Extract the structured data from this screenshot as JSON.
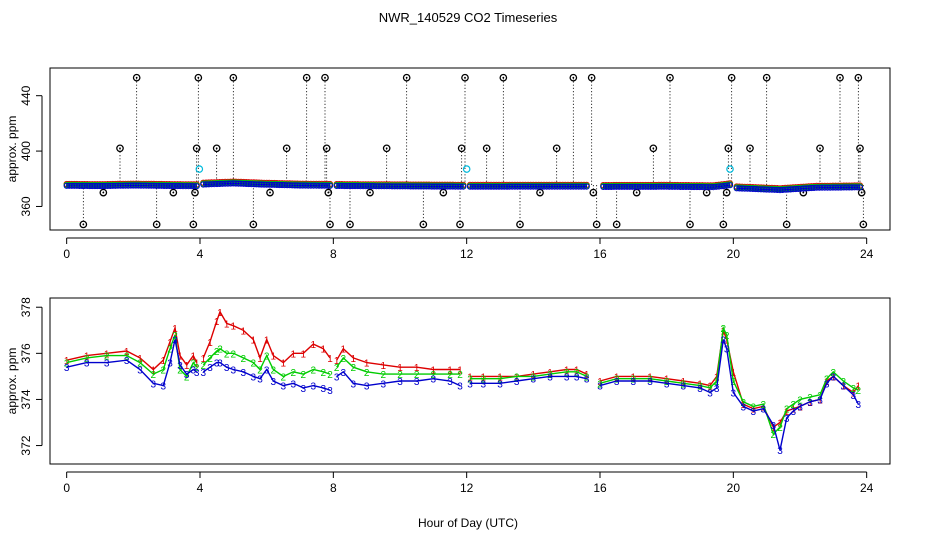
{
  "title": "NWR_140529  CO2 Timeseries",
  "xlabel": "Hour of Day (UTC)",
  "colors": {
    "one": "#dd0000",
    "two": "#00cc00",
    "three": "#0000cc",
    "outlier": "#000000",
    "flag": "#00bbdd"
  },
  "chart_data": [
    {
      "type": "scatter",
      "name": "overview",
      "ylabel": "approx. ppm",
      "xlim": [
        -0.5,
        24.7
      ],
      "ylim": [
        343,
        460
      ],
      "xticks": [
        0,
        4,
        8,
        12,
        16,
        20,
        24
      ],
      "xtick_labels": [
        "0",
        "4",
        "8",
        "12",
        "16",
        "20",
        "24"
      ],
      "yticks": [
        360,
        400,
        440
      ],
      "ytick_labels": [
        "360",
        "400",
        "440"
      ],
      "baseline_segments": [
        {
          "x": [
            0.0,
            1.0,
            2.0,
            3.0,
            3.9
          ],
          "y": [
            375.6,
            375.4,
            375.8,
            375.5,
            375.3
          ]
        },
        {
          "x": [
            4.1,
            5.0,
            6.0,
            7.0,
            7.9
          ],
          "y": [
            376.5,
            377.3,
            376.4,
            375.8,
            375.6
          ]
        },
        {
          "x": [
            8.1,
            10.0,
            11.9
          ],
          "y": [
            375.5,
            375.2,
            375.0
          ]
        },
        {
          "x": [
            12.1,
            14.0,
            15.6
          ],
          "y": [
            374.9,
            375.0,
            375.0
          ]
        },
        {
          "x": [
            16.1,
            18.0,
            19.4,
            19.9
          ],
          "y": [
            374.8,
            374.9,
            374.6,
            376.0
          ]
        },
        {
          "x": [
            20.1,
            21.4,
            22.5,
            23.8
          ],
          "y": [
            373.8,
            372.5,
            374.2,
            374.5
          ]
        }
      ],
      "outliers": [
        {
          "x": 0.5,
          "y": 347
        },
        {
          "x": 1.1,
          "y": 370
        },
        {
          "x": 1.6,
          "y": 402
        },
        {
          "x": 2.1,
          "y": 453
        },
        {
          "x": 2.7,
          "y": 347
        },
        {
          "x": 3.2,
          "y": 370
        },
        {
          "x": 3.8,
          "y": 347
        },
        {
          "x": 3.85,
          "y": 370
        },
        {
          "x": 3.9,
          "y": 402
        },
        {
          "x": 3.95,
          "y": 453
        },
        {
          "x": 4.5,
          "y": 402
        },
        {
          "x": 5.0,
          "y": 453
        },
        {
          "x": 5.6,
          "y": 347
        },
        {
          "x": 6.1,
          "y": 370
        },
        {
          "x": 6.6,
          "y": 402
        },
        {
          "x": 7.2,
          "y": 453
        },
        {
          "x": 7.75,
          "y": 453
        },
        {
          "x": 7.8,
          "y": 402
        },
        {
          "x": 7.85,
          "y": 370
        },
        {
          "x": 7.9,
          "y": 347
        },
        {
          "x": 8.5,
          "y": 347
        },
        {
          "x": 9.1,
          "y": 370
        },
        {
          "x": 9.6,
          "y": 402
        },
        {
          "x": 10.2,
          "y": 453
        },
        {
          "x": 10.7,
          "y": 347
        },
        {
          "x": 11.3,
          "y": 370
        },
        {
          "x": 11.8,
          "y": 347
        },
        {
          "x": 11.85,
          "y": 402
        },
        {
          "x": 11.95,
          "y": 453
        },
        {
          "x": 12.6,
          "y": 402
        },
        {
          "x": 13.1,
          "y": 453
        },
        {
          "x": 13.6,
          "y": 347
        },
        {
          "x": 14.2,
          "y": 370
        },
        {
          "x": 14.7,
          "y": 402
        },
        {
          "x": 15.2,
          "y": 453
        },
        {
          "x": 15.75,
          "y": 453
        },
        {
          "x": 15.8,
          "y": 370
        },
        {
          "x": 15.9,
          "y": 347
        },
        {
          "x": 16.5,
          "y": 347
        },
        {
          "x": 17.1,
          "y": 370
        },
        {
          "x": 17.6,
          "y": 402
        },
        {
          "x": 18.1,
          "y": 453
        },
        {
          "x": 18.7,
          "y": 347
        },
        {
          "x": 19.2,
          "y": 370
        },
        {
          "x": 19.7,
          "y": 347
        },
        {
          "x": 19.8,
          "y": 370
        },
        {
          "x": 19.85,
          "y": 402
        },
        {
          "x": 19.95,
          "y": 453
        },
        {
          "x": 20.5,
          "y": 402
        },
        {
          "x": 21.0,
          "y": 453
        },
        {
          "x": 21.6,
          "y": 347
        },
        {
          "x": 22.1,
          "y": 370
        },
        {
          "x": 22.6,
          "y": 402
        },
        {
          "x": 23.2,
          "y": 453
        },
        {
          "x": 23.75,
          "y": 453
        },
        {
          "x": 23.8,
          "y": 402
        },
        {
          "x": 23.85,
          "y": 370
        },
        {
          "x": 23.9,
          "y": 347
        }
      ],
      "flags": [
        {
          "x": 3.98,
          "y": 387
        },
        {
          "x": 12.0,
          "y": 387
        },
        {
          "x": 19.9,
          "y": 387
        }
      ]
    },
    {
      "type": "line",
      "name": "detail",
      "ylabel": "approx. ppm",
      "xlim": [
        -0.5,
        24.7
      ],
      "ylim": [
        371.2,
        378.4
      ],
      "xticks": [
        0,
        4,
        8,
        12,
        16,
        20,
        24
      ],
      "xtick_labels": [
        "0",
        "4",
        "8",
        "12",
        "16",
        "20",
        "24"
      ],
      "yticks": [
        372,
        374,
        376,
        378
      ],
      "ytick_labels": [
        "372",
        "374",
        "376",
        "378"
      ],
      "series": [
        {
          "name": "1",
          "marker": "1",
          "color_key": "one",
          "segments": [
            {
              "x": [
                0.0,
                0.6,
                1.2,
                1.8,
                2.2,
                2.6,
                2.9,
                3.1,
                3.25,
                3.4,
                3.6,
                3.8,
                3.9
              ],
              "y": [
                375.7,
                375.9,
                376.0,
                376.1,
                375.8,
                375.3,
                375.7,
                376.5,
                377.1,
                375.9,
                375.5,
                375.9,
                375.6
              ]
            },
            {
              "x": [
                4.1,
                4.3,
                4.5,
                4.6,
                4.8,
                5.0,
                5.3,
                5.6,
                5.8,
                6.0,
                6.2,
                6.5,
                6.8,
                7.1,
                7.4,
                7.7,
                7.9
              ],
              "y": [
                375.8,
                376.5,
                377.4,
                377.8,
                377.3,
                377.2,
                377.0,
                376.6,
                375.8,
                376.6,
                375.9,
                375.6,
                376.0,
                376.0,
                376.4,
                376.2,
                375.8
              ]
            },
            {
              "x": [
                8.1,
                8.3,
                8.6,
                9.0,
                9.5,
                10.0,
                10.5,
                11.0,
                11.5,
                11.8
              ],
              "y": [
                375.7,
                376.2,
                375.8,
                375.6,
                375.5,
                375.4,
                375.4,
                375.3,
                375.3,
                375.3
              ]
            },
            {
              "x": [
                12.1,
                12.5,
                13.0,
                13.5,
                14.0,
                14.5,
                15.0,
                15.3,
                15.6
              ],
              "y": [
                375.0,
                375.0,
                375.0,
                375.0,
                375.1,
                375.2,
                375.3,
                375.3,
                375.1
              ]
            },
            {
              "x": [
                16.0,
                16.5,
                17.0,
                17.5,
                18.0,
                18.5,
                19.0,
                19.3,
                19.5,
                19.7,
                19.8,
                20.0,
                20.3,
                20.6,
                20.9,
                21.2,
                21.4,
                21.6,
                21.8,
                22.0,
                22.3,
                22.6,
                22.8,
                23.0,
                23.3,
                23.6,
                23.75
              ],
              "y": [
                374.8,
                375.0,
                375.0,
                375.0,
                374.9,
                374.8,
                374.7,
                374.6,
                375.0,
                377.0,
                376.6,
                375.2,
                373.8,
                373.6,
                373.7,
                372.8,
                373.0,
                373.5,
                373.6,
                373.7,
                373.9,
                374.0,
                374.8,
                375.0,
                374.6,
                374.3,
                374.6
              ]
            }
          ]
        },
        {
          "name": "2",
          "marker": "2",
          "color_key": "two",
          "segments": [
            {
              "x": [
                0.0,
                0.6,
                1.2,
                1.8,
                2.2,
                2.6,
                2.9,
                3.1,
                3.25,
                3.4,
                3.6,
                3.8,
                3.9
              ],
              "y": [
                375.6,
                375.8,
                375.9,
                375.9,
                375.6,
                375.1,
                375.3,
                376.2,
                376.8,
                375.3,
                375.0,
                375.6,
                375.4
              ]
            },
            {
              "x": [
                4.1,
                4.3,
                4.5,
                4.6,
                4.8,
                5.0,
                5.3,
                5.6,
                5.8,
                6.0,
                6.2,
                6.5,
                6.8,
                7.1,
                7.4,
                7.7,
                7.9
              ],
              "y": [
                375.5,
                375.8,
                376.1,
                376.2,
                376.0,
                376.0,
                375.8,
                375.6,
                375.3,
                375.9,
                375.3,
                375.0,
                375.2,
                375.1,
                375.3,
                375.2,
                375.1
              ]
            },
            {
              "x": [
                8.1,
                8.3,
                8.6,
                9.0,
                9.5,
                10.0,
                10.5,
                11.0,
                11.5,
                11.8
              ],
              "y": [
                375.4,
                375.8,
                375.4,
                375.2,
                375.1,
                375.1,
                375.1,
                375.1,
                375.1,
                375.1
              ]
            },
            {
              "x": [
                12.1,
                12.5,
                13.0,
                13.5,
                14.0,
                14.5,
                15.0,
                15.3,
                15.6
              ],
              "y": [
                374.9,
                374.9,
                374.9,
                375.0,
                375.0,
                375.1,
                375.2,
                375.2,
                375.0
              ]
            },
            {
              "x": [
                16.0,
                16.5,
                17.0,
                17.5,
                18.0,
                18.5,
                19.0,
                19.3,
                19.5,
                19.7,
                19.8,
                20.0,
                20.3,
                20.6,
                20.9,
                21.2,
                21.4,
                21.6,
                21.8,
                22.0,
                22.3,
                22.6,
                22.8,
                23.0,
                23.3,
                23.6,
                23.75
              ],
              "y": [
                374.7,
                374.9,
                374.9,
                374.9,
                374.8,
                374.7,
                374.6,
                374.5,
                374.8,
                377.1,
                376.8,
                374.8,
                373.9,
                373.7,
                373.8,
                372.5,
                372.8,
                373.6,
                373.8,
                374.0,
                374.1,
                374.2,
                374.9,
                375.2,
                374.8,
                374.5,
                374.4
              ]
            }
          ]
        },
        {
          "name": "3",
          "marker": "3",
          "color_key": "three",
          "segments": [
            {
              "x": [
                0.0,
                0.6,
                1.2,
                1.8,
                2.2,
                2.6,
                2.9,
                3.1,
                3.25,
                3.4,
                3.6,
                3.8,
                3.9
              ],
              "y": [
                375.4,
                375.6,
                375.6,
                375.7,
                375.3,
                374.7,
                374.6,
                375.6,
                376.6,
                375.5,
                375.1,
                375.3,
                375.2
              ]
            },
            {
              "x": [
                4.1,
                4.3,
                4.5,
                4.6,
                4.8,
                5.0,
                5.3,
                5.6,
                5.8,
                6.0,
                6.2,
                6.5,
                6.8,
                7.1,
                7.4,
                7.7,
                7.9
              ],
              "y": [
                375.2,
                375.4,
                375.6,
                375.6,
                375.4,
                375.3,
                375.2,
                375.0,
                374.9,
                375.3,
                374.8,
                374.6,
                374.7,
                374.5,
                374.6,
                374.5,
                374.4
              ]
            },
            {
              "x": [
                8.1,
                8.3,
                8.6,
                9.0,
                9.5,
                10.0,
                10.5,
                11.0,
                11.5,
                11.8
              ],
              "y": [
                375.0,
                375.2,
                374.7,
                374.6,
                374.7,
                374.8,
                374.8,
                374.9,
                374.8,
                374.6
              ]
            },
            {
              "x": [
                12.1,
                12.5,
                13.0,
                13.5,
                14.0,
                14.5,
                15.0,
                15.3,
                15.6
              ],
              "y": [
                374.7,
                374.7,
                374.7,
                374.8,
                374.9,
                375.0,
                375.0,
                375.0,
                374.9
              ]
            },
            {
              "x": [
                16.0,
                16.5,
                17.0,
                17.5,
                18.0,
                18.5,
                19.0,
                19.3,
                19.5,
                19.7,
                19.8,
                20.0,
                20.3,
                20.6,
                20.9,
                21.2,
                21.4,
                21.6,
                21.8,
                22.0,
                22.3,
                22.6,
                22.8,
                23.0,
                23.3,
                23.6,
                23.75
              ],
              "y": [
                374.6,
                374.8,
                374.8,
                374.8,
                374.7,
                374.6,
                374.5,
                374.3,
                374.5,
                376.6,
                376.2,
                374.3,
                373.7,
                373.5,
                373.6,
                372.9,
                371.8,
                373.2,
                373.5,
                373.7,
                373.9,
                374.0,
                374.7,
                375.0,
                374.6,
                374.2,
                373.8
              ]
            }
          ]
        }
      ]
    }
  ]
}
